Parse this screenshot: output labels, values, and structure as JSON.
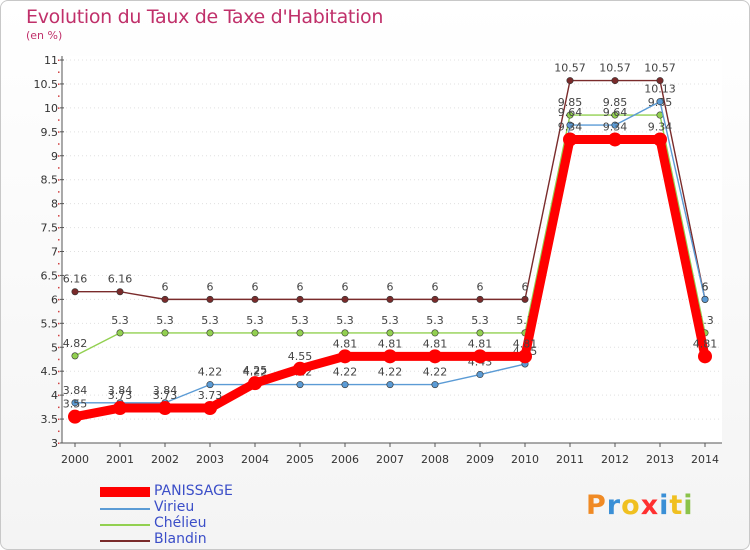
{
  "title": "Evolution du Taux de Taxe d'Habitation",
  "unit_label": "(en %)",
  "logo_text": "Proxiti",
  "chart_data": {
    "type": "line",
    "title": "Evolution du Taux de Taxe d'Habitation",
    "ylabel": "(en %)",
    "xlabel": "",
    "ylim": [
      3,
      11
    ],
    "x": [
      "2000",
      "2001",
      "2002",
      "2003",
      "2004",
      "2005",
      "2006",
      "2007",
      "2008",
      "2009",
      "2010",
      "2011",
      "2012",
      "2013",
      "2014"
    ],
    "y_ticks": [
      "3",
      "3.5",
      "4",
      "4.5",
      "5",
      "5.5",
      "6",
      "6.5",
      "7",
      "7.5",
      "8",
      "8.5",
      "9",
      "9.5",
      "10",
      "10.5",
      "11"
    ],
    "series": [
      {
        "name": "Blandin",
        "color": "#7a2b2b",
        "values": [
          6.16,
          6.16,
          6,
          6,
          6,
          6,
          6,
          6,
          6,
          6,
          6,
          10.57,
          10.57,
          10.57,
          6
        ],
        "labels": [
          "6.16",
          "6.16",
          "6",
          "6",
          "6",
          "6",
          "6",
          "6",
          "6",
          "6",
          "6",
          "10.57",
          "10.57",
          "10.57",
          "6"
        ]
      },
      {
        "name": "Chélieu",
        "color": "#92d050",
        "values": [
          4.82,
          5.3,
          5.3,
          5.3,
          5.3,
          5.3,
          5.3,
          5.3,
          5.3,
          5.3,
          5.3,
          9.85,
          9.85,
          9.85,
          5.3
        ],
        "labels": [
          "4.82",
          "5.3",
          "5.3",
          "5.3",
          "5.3",
          "5.3",
          "5.3",
          "5.3",
          "5.3",
          "5.3",
          "5.3",
          "9.85",
          "9.85",
          "9.85",
          "5.3"
        ]
      },
      {
        "name": "Virieu",
        "color": "#5b9bd5",
        "values": [
          3.84,
          3.84,
          3.84,
          4.22,
          4.22,
          4.22,
          4.22,
          4.22,
          4.22,
          4.43,
          4.65,
          9.64,
          9.64,
          10.13,
          6
        ],
        "labels": [
          "3.84",
          "3.84",
          "3.84",
          "4.22",
          "4.22",
          "4.22",
          "4.22",
          "4.22",
          "4.22",
          "4.43",
          "4.65",
          "9.64",
          "9.64",
          "10.13",
          "6"
        ]
      },
      {
        "name": "PANISSAGE",
        "color": "#ff0000",
        "values": [
          3.55,
          3.73,
          3.73,
          3.73,
          4.25,
          4.55,
          4.81,
          4.81,
          4.81,
          4.81,
          4.81,
          9.34,
          9.34,
          9.34,
          4.81
        ],
        "labels": [
          "3.55",
          "3.73",
          "3.73",
          "3.73",
          "4.25",
          "4.55",
          "4.81",
          "4.81",
          "4.81",
          "4.81",
          "4.81",
          "9.34",
          "9.34",
          "9.34",
          "4.81"
        ]
      }
    ],
    "legend": [
      "PANISSAGE",
      "Virieu",
      "Chélieu",
      "Blandin"
    ]
  }
}
